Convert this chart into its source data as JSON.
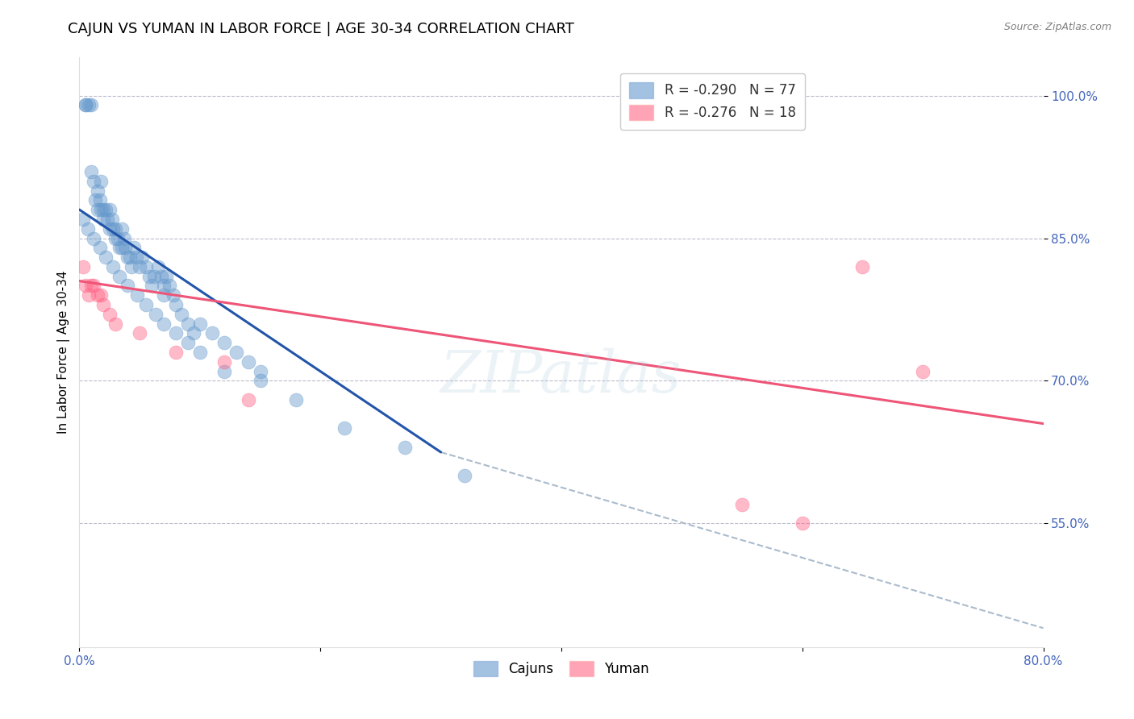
{
  "title": "CAJUN VS YUMAN IN LABOR FORCE | AGE 30-34 CORRELATION CHART",
  "source": "Source: ZipAtlas.com",
  "ylabel": "In Labor Force | Age 30-34",
  "xlim": [
    0.0,
    0.8
  ],
  "ylim": [
    0.42,
    1.04
  ],
  "yticks": [
    0.55,
    0.7,
    0.85,
    1.0
  ],
  "ytick_labels": [
    "55.0%",
    "70.0%",
    "85.0%",
    "100.0%"
  ],
  "xticks": [
    0.0,
    0.2,
    0.4,
    0.6,
    0.8
  ],
  "xtick_labels": [
    "0.0%",
    "",
    "",
    "",
    "80.0%"
  ],
  "cajun_R": -0.29,
  "cajun_N": 77,
  "yuman_R": -0.276,
  "yuman_N": 18,
  "cajun_color": "#6699CC",
  "yuman_color": "#FF6688",
  "cajun_line_color": "#2255AA",
  "yuman_line_color": "#EE5577",
  "dashed_line_color": "#AABBCC",
  "background_color": "#FFFFFF",
  "grid_color": "#BBBBCC",
  "axis_label_color": "#4466BB",
  "cajun_scatter_x": [
    0.005,
    0.005,
    0.008,
    0.01,
    0.01,
    0.012,
    0.013,
    0.015,
    0.015,
    0.017,
    0.018,
    0.018,
    0.02,
    0.02,
    0.022,
    0.023,
    0.025,
    0.025,
    0.027,
    0.028,
    0.03,
    0.03,
    0.032,
    0.033,
    0.035,
    0.035,
    0.037,
    0.038,
    0.04,
    0.042,
    0.043,
    0.045,
    0.047,
    0.05,
    0.052,
    0.055,
    0.058,
    0.06,
    0.062,
    0.065,
    0.068,
    0.07,
    0.07,
    0.072,
    0.075,
    0.078,
    0.08,
    0.085,
    0.09,
    0.095,
    0.1,
    0.11,
    0.12,
    0.13,
    0.14,
    0.15,
    0.003,
    0.007,
    0.012,
    0.017,
    0.022,
    0.028,
    0.033,
    0.04,
    0.048,
    0.055,
    0.063,
    0.07,
    0.08,
    0.09,
    0.1,
    0.12,
    0.15,
    0.18,
    0.22,
    0.27,
    0.32
  ],
  "cajun_scatter_y": [
    0.99,
    0.99,
    0.99,
    0.99,
    0.92,
    0.91,
    0.89,
    0.88,
    0.9,
    0.89,
    0.88,
    0.91,
    0.88,
    0.87,
    0.88,
    0.87,
    0.86,
    0.88,
    0.87,
    0.86,
    0.86,
    0.85,
    0.85,
    0.84,
    0.84,
    0.86,
    0.85,
    0.84,
    0.83,
    0.83,
    0.82,
    0.84,
    0.83,
    0.82,
    0.83,
    0.82,
    0.81,
    0.8,
    0.81,
    0.82,
    0.81,
    0.8,
    0.79,
    0.81,
    0.8,
    0.79,
    0.78,
    0.77,
    0.76,
    0.75,
    0.76,
    0.75,
    0.74,
    0.73,
    0.72,
    0.71,
    0.87,
    0.86,
    0.85,
    0.84,
    0.83,
    0.82,
    0.81,
    0.8,
    0.79,
    0.78,
    0.77,
    0.76,
    0.75,
    0.74,
    0.73,
    0.71,
    0.7,
    0.68,
    0.65,
    0.63,
    0.6
  ],
  "yuman_scatter_x": [
    0.003,
    0.005,
    0.008,
    0.01,
    0.012,
    0.015,
    0.018,
    0.02,
    0.025,
    0.03,
    0.05,
    0.08,
    0.12,
    0.14,
    0.55,
    0.6,
    0.65,
    0.7
  ],
  "yuman_scatter_y": [
    0.82,
    0.8,
    0.79,
    0.8,
    0.8,
    0.79,
    0.79,
    0.78,
    0.77,
    0.76,
    0.75,
    0.73,
    0.72,
    0.68,
    0.57,
    0.55,
    0.82,
    0.71
  ],
  "cajun_trend_x": [
    0.0,
    0.3
  ],
  "cajun_trend_y": [
    0.88,
    0.625
  ],
  "yuman_trend_x": [
    0.0,
    0.8
  ],
  "yuman_trend_y": [
    0.805,
    0.655
  ],
  "dashed_trend_x": [
    0.3,
    0.8
  ],
  "dashed_trend_y": [
    0.625,
    0.44
  ],
  "watermark": "ZIPatlas",
  "title_fontsize": 13,
  "label_fontsize": 11,
  "tick_fontsize": 11
}
